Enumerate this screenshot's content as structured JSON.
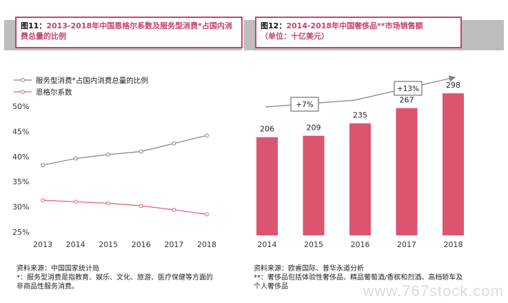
{
  "left": {
    "title_num": "图11：",
    "title": "2013-2018年中国恩格尔系数及服务型消费*占国内消费总量的比例",
    "source_line1": "资料来源：中国国家统计局",
    "source_line2": "*：服务型消费是指教育、娱乐、文化、旅游、医疗保健等方面的",
    "source_line3": "非商品性服务消费。"
  },
  "right": {
    "title_num": "图12：",
    "title": "2014-2018年中国奢侈品**市场销售额",
    "subtitle": "（单位：十亿美元）",
    "source_line1": "资料来源：欧睿国际、普华永道分析",
    "source_line2": "**：奢侈品包括体验性奢侈品、精品葡萄酒/香槟和烈酒、高档轿车及",
    "source_line3": "个人奢侈品"
  },
  "watermark": "www.767stock.com",
  "chart_data": [
    {
      "type": "line",
      "x": [
        "2013",
        "2014",
        "2015",
        "2016",
        "2017",
        "2018"
      ],
      "ylim": [
        25,
        50
      ],
      "yticks": [
        "25%",
        "30%",
        "35%",
        "40%",
        "45%",
        "50%"
      ],
      "series": [
        {
          "name": "服务型消费*占国内消费总量的比例",
          "values": [
            38.3,
            39.6,
            40.4,
            41.0,
            42.6,
            44.2
          ],
          "color": "#808080"
        },
        {
          "name": "恩格尔系数",
          "values": [
            31.3,
            31.0,
            30.7,
            30.2,
            29.4,
            28.5
          ],
          "color": "#e05a6e"
        }
      ],
      "legend_position": "top-left",
      "grid": false
    },
    {
      "type": "bar",
      "categories": [
        "2014",
        "2015",
        "2016",
        "2017",
        "2018"
      ],
      "values": [
        206,
        209,
        235,
        267,
        298
      ],
      "ylim": [
        0,
        320
      ],
      "bar_color": "#dc5570",
      "annotations": [
        "+7%",
        "+13%"
      ]
    }
  ]
}
